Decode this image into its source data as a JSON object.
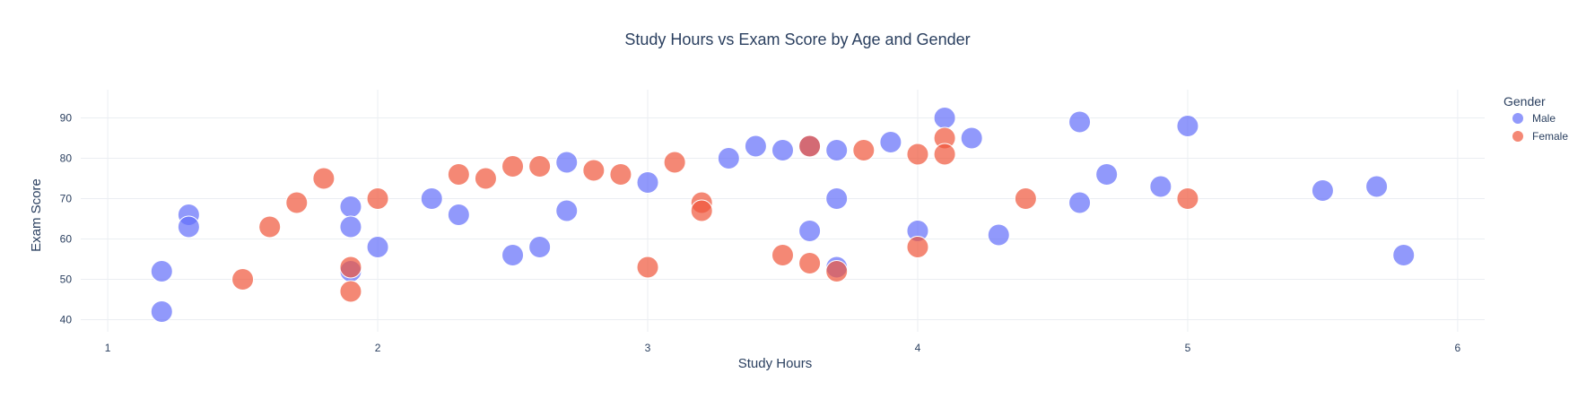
{
  "chart_data": {
    "type": "scatter",
    "title": "Study Hours vs Exam Score by Age and Gender",
    "xlabel": "Study Hours",
    "ylabel": "Exam Score",
    "xlim": [
      0.9,
      6.1
    ],
    "ylim": [
      37,
      97
    ],
    "xticks": [
      1,
      2,
      3,
      4,
      5,
      6
    ],
    "yticks": [
      40,
      50,
      60,
      70,
      80,
      90
    ],
    "grid": true,
    "legend": {
      "title": "Gender",
      "placement": "top-right"
    },
    "series": [
      {
        "name": "Male",
        "color": "#636efa",
        "points": [
          {
            "x": 1.2,
            "y": 52
          },
          {
            "x": 1.2,
            "y": 42
          },
          {
            "x": 1.3,
            "y": 66
          },
          {
            "x": 1.3,
            "y": 63
          },
          {
            "x": 1.9,
            "y": 68
          },
          {
            "x": 1.9,
            "y": 63
          },
          {
            "x": 1.9,
            "y": 52
          },
          {
            "x": 2.0,
            "y": 58
          },
          {
            "x": 2.2,
            "y": 70
          },
          {
            "x": 2.3,
            "y": 66
          },
          {
            "x": 2.5,
            "y": 56
          },
          {
            "x": 2.6,
            "y": 58
          },
          {
            "x": 2.7,
            "y": 79
          },
          {
            "x": 2.7,
            "y": 67
          },
          {
            "x": 3.0,
            "y": 74
          },
          {
            "x": 3.3,
            "y": 80
          },
          {
            "x": 3.4,
            "y": 83
          },
          {
            "x": 3.5,
            "y": 82
          },
          {
            "x": 3.6,
            "y": 83
          },
          {
            "x": 3.6,
            "y": 62
          },
          {
            "x": 3.7,
            "y": 82
          },
          {
            "x": 3.7,
            "y": 70
          },
          {
            "x": 3.7,
            "y": 53
          },
          {
            "x": 3.9,
            "y": 84
          },
          {
            "x": 4.0,
            "y": 62
          },
          {
            "x": 4.1,
            "y": 90
          },
          {
            "x": 4.2,
            "y": 85
          },
          {
            "x": 4.3,
            "y": 61
          },
          {
            "x": 4.6,
            "y": 89
          },
          {
            "x": 4.6,
            "y": 69
          },
          {
            "x": 4.7,
            "y": 76
          },
          {
            "x": 4.9,
            "y": 73
          },
          {
            "x": 5.0,
            "y": 88
          },
          {
            "x": 5.5,
            "y": 72
          },
          {
            "x": 5.7,
            "y": 73
          },
          {
            "x": 5.8,
            "y": 56
          }
        ]
      },
      {
        "name": "Female",
        "color": "#ef553b",
        "points": [
          {
            "x": 1.5,
            "y": 50
          },
          {
            "x": 1.6,
            "y": 63
          },
          {
            "x": 1.7,
            "y": 69
          },
          {
            "x": 1.8,
            "y": 75
          },
          {
            "x": 1.9,
            "y": 53
          },
          {
            "x": 1.9,
            "y": 47
          },
          {
            "x": 2.0,
            "y": 70
          },
          {
            "x": 2.3,
            "y": 76
          },
          {
            "x": 2.4,
            "y": 75
          },
          {
            "x": 2.5,
            "y": 78
          },
          {
            "x": 2.6,
            "y": 78
          },
          {
            "x": 2.8,
            "y": 77
          },
          {
            "x": 2.9,
            "y": 76
          },
          {
            "x": 3.0,
            "y": 53
          },
          {
            "x": 3.1,
            "y": 79
          },
          {
            "x": 3.2,
            "y": 69
          },
          {
            "x": 3.2,
            "y": 67
          },
          {
            "x": 3.5,
            "y": 56
          },
          {
            "x": 3.6,
            "y": 83
          },
          {
            "x": 3.6,
            "y": 54
          },
          {
            "x": 3.7,
            "y": 52
          },
          {
            "x": 3.8,
            "y": 82
          },
          {
            "x": 4.0,
            "y": 81
          },
          {
            "x": 4.0,
            "y": 58
          },
          {
            "x": 4.1,
            "y": 85
          },
          {
            "x": 4.1,
            "y": 81
          },
          {
            "x": 4.4,
            "y": 70
          },
          {
            "x": 5.0,
            "y": 70
          }
        ]
      }
    ]
  }
}
